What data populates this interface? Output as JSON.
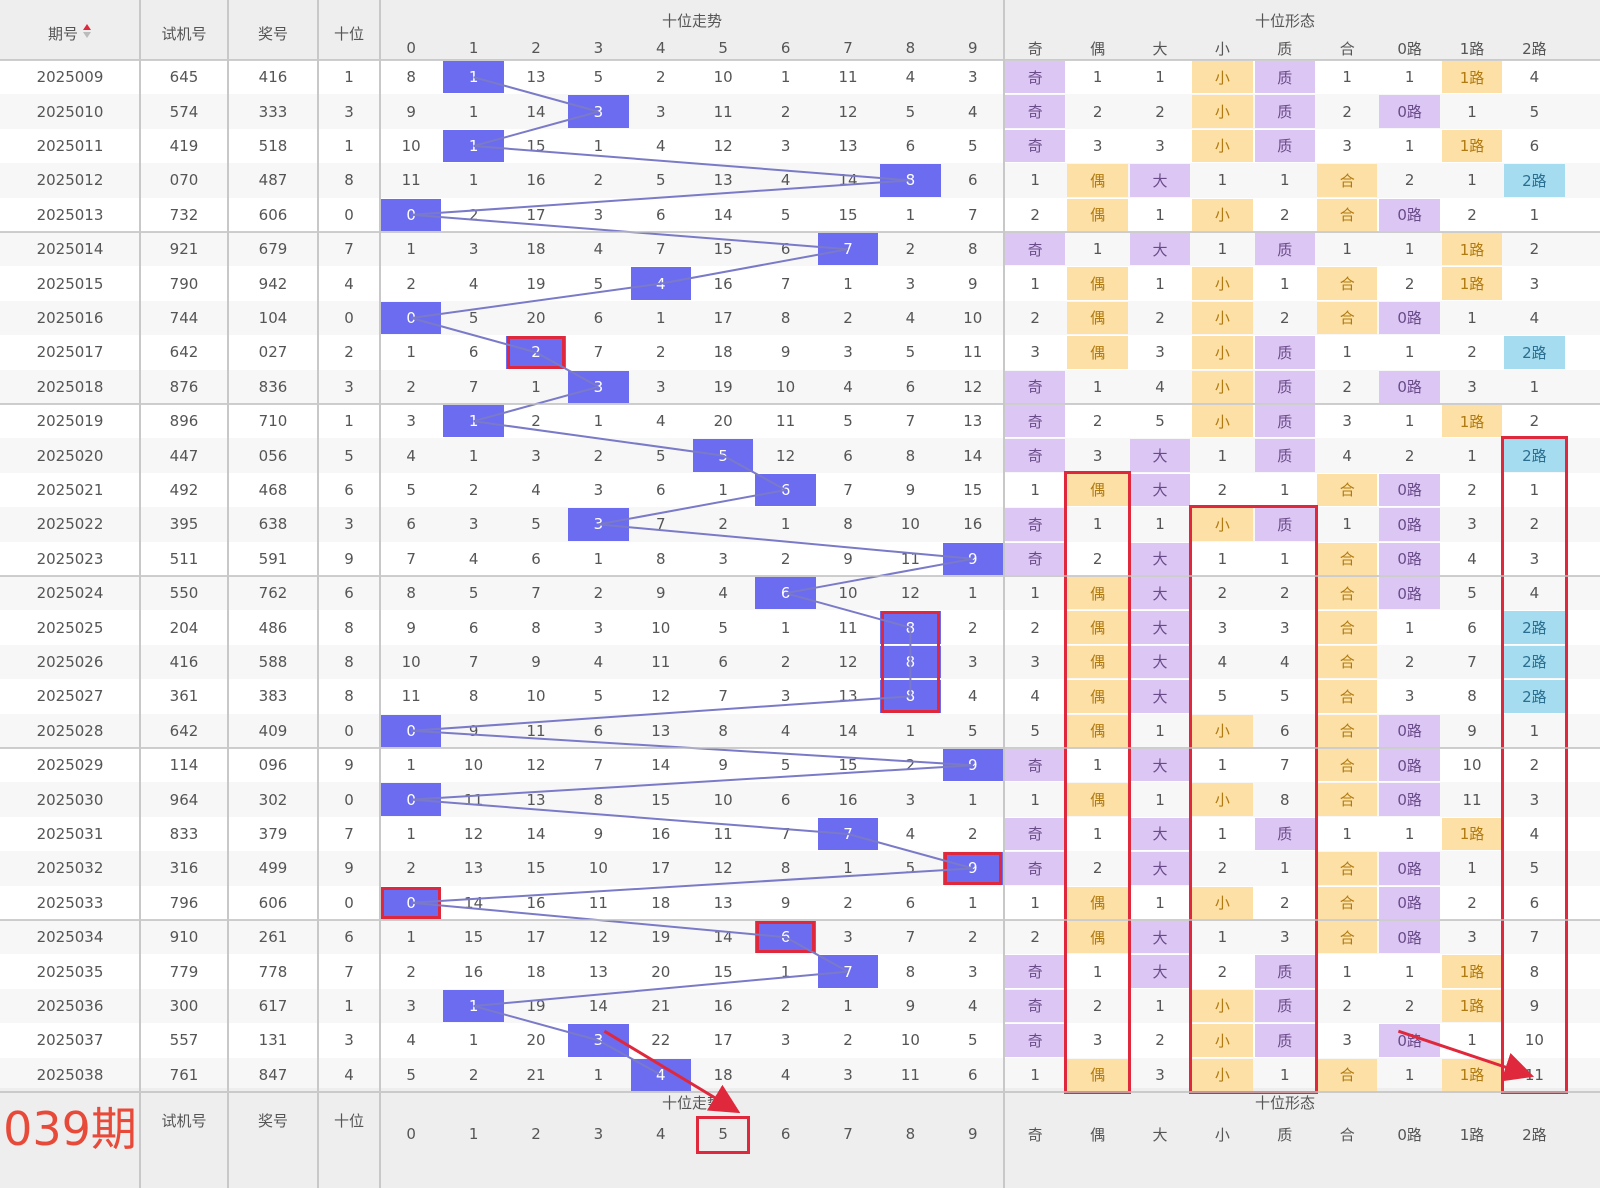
{
  "header": {
    "issue": "期号",
    "test": "试机号",
    "prize": "奖号",
    "tens": "十位",
    "trend_group": "十位走势",
    "form_group": "十位形态",
    "digits": [
      "0",
      "1",
      "2",
      "3",
      "4",
      "5",
      "6",
      "7",
      "8",
      "9"
    ],
    "form_cols": [
      "奇",
      "偶",
      "大",
      "小",
      "质",
      "合",
      "0路",
      "1路",
      "2路"
    ]
  },
  "sort_icon": "sort-up-down-icon",
  "rows": [
    {
      "issue": "2025009",
      "test": "645",
      "prize": "416",
      "tens": "1",
      "trend": [
        "8",
        "1",
        "13",
        "5",
        "2",
        "10",
        "1",
        "11",
        "4",
        "3"
      ],
      "form": [
        "奇",
        "1",
        "1",
        "小",
        "质",
        "1",
        "1",
        "1路",
        "4"
      ]
    },
    {
      "issue": "2025010",
      "test": "574",
      "prize": "333",
      "tens": "3",
      "trend": [
        "9",
        "1",
        "14",
        "3",
        "3",
        "11",
        "2",
        "12",
        "5",
        "4"
      ],
      "form": [
        "奇",
        "2",
        "2",
        "小",
        "质",
        "2",
        "0路",
        "1",
        "5"
      ]
    },
    {
      "issue": "2025011",
      "test": "419",
      "prize": "518",
      "tens": "1",
      "trend": [
        "10",
        "1",
        "15",
        "1",
        "4",
        "12",
        "3",
        "13",
        "6",
        "5"
      ],
      "form": [
        "奇",
        "3",
        "3",
        "小",
        "质",
        "3",
        "1",
        "1路",
        "6"
      ]
    },
    {
      "issue": "2025012",
      "test": "070",
      "prize": "487",
      "tens": "8",
      "trend": [
        "11",
        "1",
        "16",
        "2",
        "5",
        "13",
        "4",
        "14",
        "8",
        "6"
      ],
      "form": [
        "1",
        "偶",
        "大",
        "1",
        "1",
        "合",
        "2",
        "1",
        "2路"
      ]
    },
    {
      "issue": "2025013",
      "test": "732",
      "prize": "606",
      "tens": "0",
      "trend": [
        "0",
        "2",
        "17",
        "3",
        "6",
        "14",
        "5",
        "15",
        "1",
        "7"
      ],
      "form": [
        "2",
        "偶",
        "1",
        "小",
        "2",
        "合",
        "0路",
        "2",
        "1"
      ]
    },
    {
      "issue": "2025014",
      "test": "921",
      "prize": "679",
      "tens": "7",
      "trend": [
        "1",
        "3",
        "18",
        "4",
        "7",
        "15",
        "6",
        "7",
        "2",
        "8"
      ],
      "form": [
        "奇",
        "1",
        "大",
        "1",
        "质",
        "1",
        "1",
        "1路",
        "2"
      ]
    },
    {
      "issue": "2025015",
      "test": "790",
      "prize": "942",
      "tens": "4",
      "trend": [
        "2",
        "4",
        "19",
        "5",
        "4",
        "16",
        "7",
        "1",
        "3",
        "9"
      ],
      "form": [
        "1",
        "偶",
        "1",
        "小",
        "1",
        "合",
        "2",
        "1路",
        "3"
      ]
    },
    {
      "issue": "2025016",
      "test": "744",
      "prize": "104",
      "tens": "0",
      "trend": [
        "0",
        "5",
        "20",
        "6",
        "1",
        "17",
        "8",
        "2",
        "4",
        "10"
      ],
      "form": [
        "2",
        "偶",
        "2",
        "小",
        "2",
        "合",
        "0路",
        "1",
        "4"
      ]
    },
    {
      "issue": "2025017",
      "test": "642",
      "prize": "027",
      "tens": "2",
      "trend": [
        "1",
        "6",
        "2",
        "7",
        "2",
        "18",
        "9",
        "3",
        "5",
        "11"
      ],
      "form": [
        "3",
        "偶",
        "3",
        "小",
        "质",
        "1",
        "1",
        "2",
        "2路"
      ]
    },
    {
      "issue": "2025018",
      "test": "876",
      "prize": "836",
      "tens": "3",
      "trend": [
        "2",
        "7",
        "1",
        "3",
        "3",
        "19",
        "10",
        "4",
        "6",
        "12"
      ],
      "form": [
        "奇",
        "1",
        "4",
        "小",
        "质",
        "2",
        "0路",
        "3",
        "1"
      ]
    },
    {
      "issue": "2025019",
      "test": "896",
      "prize": "710",
      "tens": "1",
      "trend": [
        "3",
        "1",
        "2",
        "1",
        "4",
        "20",
        "11",
        "5",
        "7",
        "13"
      ],
      "form": [
        "奇",
        "2",
        "5",
        "小",
        "质",
        "3",
        "1",
        "1路",
        "2"
      ]
    },
    {
      "issue": "2025020",
      "test": "447",
      "prize": "056",
      "tens": "5",
      "trend": [
        "4",
        "1",
        "3",
        "2",
        "5",
        "5",
        "12",
        "6",
        "8",
        "14"
      ],
      "form": [
        "奇",
        "3",
        "大",
        "1",
        "质",
        "4",
        "2",
        "1",
        "2路"
      ]
    },
    {
      "issue": "2025021",
      "test": "492",
      "prize": "468",
      "tens": "6",
      "trend": [
        "5",
        "2",
        "4",
        "3",
        "6",
        "1",
        "6",
        "7",
        "9",
        "15"
      ],
      "form": [
        "1",
        "偶",
        "大",
        "2",
        "1",
        "合",
        "0路",
        "2",
        "1"
      ]
    },
    {
      "issue": "2025022",
      "test": "395",
      "prize": "638",
      "tens": "3",
      "trend": [
        "6",
        "3",
        "5",
        "3",
        "7",
        "2",
        "1",
        "8",
        "10",
        "16"
      ],
      "form": [
        "奇",
        "1",
        "1",
        "小",
        "质",
        "1",
        "0路",
        "3",
        "2"
      ]
    },
    {
      "issue": "2025023",
      "test": "511",
      "prize": "591",
      "tens": "9",
      "trend": [
        "7",
        "4",
        "6",
        "1",
        "8",
        "3",
        "2",
        "9",
        "11",
        "9"
      ],
      "form": [
        "奇",
        "2",
        "大",
        "1",
        "1",
        "合",
        "0路",
        "4",
        "3"
      ]
    },
    {
      "issue": "2025024",
      "test": "550",
      "prize": "762",
      "tens": "6",
      "trend": [
        "8",
        "5",
        "7",
        "2",
        "9",
        "4",
        "6",
        "10",
        "12",
        "1"
      ],
      "form": [
        "1",
        "偶",
        "大",
        "2",
        "2",
        "合",
        "0路",
        "5",
        "4"
      ]
    },
    {
      "issue": "2025025",
      "test": "204",
      "prize": "486",
      "tens": "8",
      "trend": [
        "9",
        "6",
        "8",
        "3",
        "10",
        "5",
        "1",
        "11",
        "8",
        "2"
      ],
      "form": [
        "2",
        "偶",
        "大",
        "3",
        "3",
        "合",
        "1",
        "6",
        "2路"
      ]
    },
    {
      "issue": "2025026",
      "test": "416",
      "prize": "588",
      "tens": "8",
      "trend": [
        "10",
        "7",
        "9",
        "4",
        "11",
        "6",
        "2",
        "12",
        "8",
        "3"
      ],
      "form": [
        "3",
        "偶",
        "大",
        "4",
        "4",
        "合",
        "2",
        "7",
        "2路"
      ]
    },
    {
      "issue": "2025027",
      "test": "361",
      "prize": "383",
      "tens": "8",
      "trend": [
        "11",
        "8",
        "10",
        "5",
        "12",
        "7",
        "3",
        "13",
        "8",
        "4"
      ],
      "form": [
        "4",
        "偶",
        "大",
        "5",
        "5",
        "合",
        "3",
        "8",
        "2路"
      ]
    },
    {
      "issue": "2025028",
      "test": "642",
      "prize": "409",
      "tens": "0",
      "trend": [
        "0",
        "9",
        "11",
        "6",
        "13",
        "8",
        "4",
        "14",
        "1",
        "5"
      ],
      "form": [
        "5",
        "偶",
        "1",
        "小",
        "6",
        "合",
        "0路",
        "9",
        "1"
      ]
    },
    {
      "issue": "2025029",
      "test": "114",
      "prize": "096",
      "tens": "9",
      "trend": [
        "1",
        "10",
        "12",
        "7",
        "14",
        "9",
        "5",
        "15",
        "2",
        "9"
      ],
      "form": [
        "奇",
        "1",
        "大",
        "1",
        "7",
        "合",
        "0路",
        "10",
        "2"
      ]
    },
    {
      "issue": "2025030",
      "test": "964",
      "prize": "302",
      "tens": "0",
      "trend": [
        "0",
        "11",
        "13",
        "8",
        "15",
        "10",
        "6",
        "16",
        "3",
        "1"
      ],
      "form": [
        "1",
        "偶",
        "1",
        "小",
        "8",
        "合",
        "0路",
        "11",
        "3"
      ]
    },
    {
      "issue": "2025031",
      "test": "833",
      "prize": "379",
      "tens": "7",
      "trend": [
        "1",
        "12",
        "14",
        "9",
        "16",
        "11",
        "7",
        "7",
        "4",
        "2"
      ],
      "form": [
        "奇",
        "1",
        "大",
        "1",
        "质",
        "1",
        "1",
        "1路",
        "4"
      ]
    },
    {
      "issue": "2025032",
      "test": "316",
      "prize": "499",
      "tens": "9",
      "trend": [
        "2",
        "13",
        "15",
        "10",
        "17",
        "12",
        "8",
        "1",
        "5",
        "9"
      ],
      "form": [
        "奇",
        "2",
        "大",
        "2",
        "1",
        "合",
        "0路",
        "1",
        "5"
      ]
    },
    {
      "issue": "2025033",
      "test": "796",
      "prize": "606",
      "tens": "0",
      "trend": [
        "0",
        "14",
        "16",
        "11",
        "18",
        "13",
        "9",
        "2",
        "6",
        "1"
      ],
      "form": [
        "1",
        "偶",
        "1",
        "小",
        "2",
        "合",
        "0路",
        "2",
        "6"
      ]
    },
    {
      "issue": "2025034",
      "test": "910",
      "prize": "261",
      "tens": "6",
      "trend": [
        "1",
        "15",
        "17",
        "12",
        "19",
        "14",
        "6",
        "3",
        "7",
        "2"
      ],
      "form": [
        "2",
        "偶",
        "大",
        "1",
        "3",
        "合",
        "0路",
        "3",
        "7"
      ]
    },
    {
      "issue": "2025035",
      "test": "779",
      "prize": "778",
      "tens": "7",
      "trend": [
        "2",
        "16",
        "18",
        "13",
        "20",
        "15",
        "1",
        "7",
        "8",
        "3"
      ],
      "form": [
        "奇",
        "1",
        "大",
        "2",
        "质",
        "1",
        "1",
        "1路",
        "8"
      ]
    },
    {
      "issue": "2025036",
      "test": "300",
      "prize": "617",
      "tens": "1",
      "trend": [
        "3",
        "1",
        "19",
        "14",
        "21",
        "16",
        "2",
        "1",
        "9",
        "4"
      ],
      "form": [
        "奇",
        "2",
        "1",
        "小",
        "质",
        "2",
        "2",
        "1路",
        "9"
      ]
    },
    {
      "issue": "2025037",
      "test": "557",
      "prize": "131",
      "tens": "3",
      "trend": [
        "4",
        "1",
        "20",
        "3",
        "22",
        "17",
        "3",
        "2",
        "10",
        "5"
      ],
      "form": [
        "奇",
        "3",
        "2",
        "小",
        "质",
        "3",
        "0路",
        "1",
        "10"
      ]
    },
    {
      "issue": "2025038",
      "test": "761",
      "prize": "847",
      "tens": "4",
      "trend": [
        "5",
        "2",
        "21",
        "1",
        "4",
        "18",
        "4",
        "3",
        "11",
        "6"
      ],
      "form": [
        "1",
        "偶",
        "3",
        "小",
        "1",
        "合",
        "1",
        "1路",
        "11"
      ]
    }
  ],
  "footer": {
    "issue": "039期",
    "test": "试机号",
    "prize": "奖号",
    "tens": "十位",
    "trend_group": "十位走势",
    "form_group": "十位形态"
  },
  "colors": {
    "highlight": "#6c6cf0",
    "purple": "#dcc6f3",
    "orange": "#fde0a6",
    "blue": "#a6dcf0",
    "red_annotation": "#e0283c",
    "trend_line": "#7a7ac8"
  }
}
